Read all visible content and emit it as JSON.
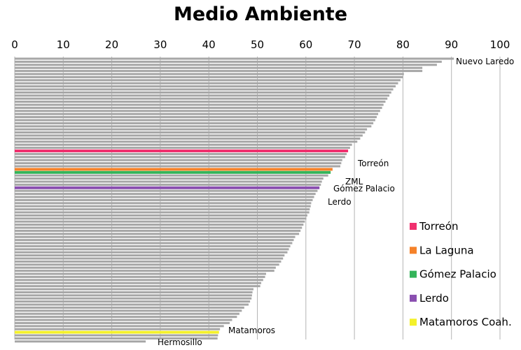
{
  "chart_data": {
    "type": "bar",
    "orientation": "horizontal",
    "title": "Medio Ambiente",
    "xlim": [
      0,
      100
    ],
    "x_ticks": [
      "0",
      "10",
      "20",
      "30",
      "40",
      "50",
      "60",
      "70",
      "80",
      "90",
      "100"
    ],
    "grid": true,
    "legend_position": "right",
    "colors": {
      "default": "#a6a6a6",
      "Torreón": "#f0306e",
      "La Laguna": "#f5822a",
      "Gómez Palacio": "#34b45a",
      "Lerdo": "#8a4fb0",
      "Matamoros Coah.": "#f4f12a"
    },
    "values": [
      90.5,
      88,
      87,
      84,
      84,
      80.2,
      80,
      79.5,
      79,
      78.5,
      78,
      77.6,
      77.2,
      76.8,
      76.4,
      76,
      75.7,
      75.3,
      74.9,
      74.6,
      74.3,
      73.9,
      73.5,
      72.6,
      72.2,
      71.7,
      71.2,
      70.6,
      69.5,
      69.1,
      68.7,
      68.4,
      68.1,
      67.5,
      67.3,
      67.1,
      65.5,
      65.1,
      64.6,
      63.6,
      63.3,
      63.1,
      62.8,
      62.4,
      62,
      61.7,
      61.4,
      61.1,
      61,
      60.8,
      60.7,
      60.3,
      60.1,
      59.8,
      59.5,
      59.2,
      58.9,
      58.6,
      57.8,
      57.5,
      57.2,
      56.8,
      56.5,
      56.2,
      55.6,
      55.3,
      54.9,
      54.5,
      53.8,
      53.5,
      51.8,
      51.6,
      51.2,
      50.8,
      50.6,
      49.2,
      49,
      48.9,
      48.8,
      48.5,
      48.2,
      47.3,
      46.8,
      46.3,
      45.8,
      44.8,
      44.3,
      43.1,
      42.3,
      42.1,
      41.9,
      41.8,
      27
    ],
    "highlights": [
      {
        "index": 0,
        "label": "Nuevo Laredo"
      },
      {
        "index": 30,
        "label": "Torreón",
        "series": "Torreón"
      },
      {
        "index": 36,
        "label": "ZML",
        "series": "La Laguna"
      },
      {
        "index": 37,
        "label": "Gómez Palacio",
        "series": "Gómez Palacio"
      },
      {
        "index": 42,
        "label": "Lerdo",
        "series": "Lerdo"
      },
      {
        "index": 89,
        "label": "Matamoros",
        "series": "Matamoros Coah."
      },
      {
        "index": 92,
        "label": "Hermosillo"
      }
    ],
    "legend": [
      "Torreón",
      "La Laguna",
      "Gómez Palacio",
      "Lerdo",
      "Matamoros Coah."
    ]
  }
}
